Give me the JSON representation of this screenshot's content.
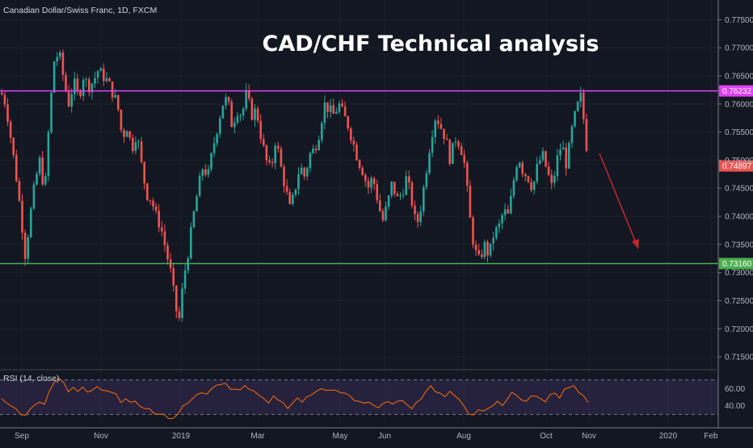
{
  "chart_data": {
    "type": "candlestick",
    "symbol_legend": "Canadian Dollar/Swiss Franc, 1D, FXCM",
    "title": "CAD/CHF Technical analysis",
    "price_axis": {
      "range": [
        0.713,
        0.7785
      ],
      "ticks": [
        "0.77500",
        "0.77000",
        "0.76500",
        "0.76000",
        "0.75500",
        "0.75000",
        "0.74500",
        "0.74000",
        "0.73500",
        "0.73000",
        "0.72500",
        "0.72000",
        "0.71500"
      ]
    },
    "time_axis": {
      "ticks": [
        "Sep",
        "Nov",
        "2019",
        "Mar",
        "May",
        "Jun",
        "Aug",
        "Oct",
        "Nov",
        "2020",
        "Feb"
      ]
    },
    "resistance": {
      "price": 0.76232,
      "label": "0.76232",
      "color": "#e040fb"
    },
    "support": {
      "price": 0.7316,
      "label": "0.73160",
      "color": "#4caf50"
    },
    "last_price": {
      "price": 0.74897,
      "label": "0.74897",
      "color": "#ef5350"
    },
    "bullish_color": "#26a69a",
    "bearish_color": "#ef5350",
    "close_path": [
      [
        0.762,
        0
      ],
      [
        0.76,
        6
      ],
      [
        0.754,
        12
      ],
      [
        0.748,
        18
      ],
      [
        0.741,
        24
      ],
      [
        0.733,
        30
      ],
      [
        0.74,
        36
      ],
      [
        0.746,
        42
      ],
      [
        0.75,
        48
      ],
      [
        0.744,
        54
      ],
      [
        0.758,
        60
      ],
      [
        0.768,
        66
      ],
      [
        0.769,
        72
      ],
      [
        0.764,
        78
      ],
      [
        0.76,
        84
      ],
      [
        0.764,
        90
      ],
      [
        0.761,
        96
      ],
      [
        0.765,
        102
      ],
      [
        0.763,
        108
      ],
      [
        0.764,
        114
      ],
      [
        0.766,
        120
      ],
      [
        0.765,
        126
      ],
      [
        0.764,
        132
      ],
      [
        0.762,
        138
      ],
      [
        0.76,
        144
      ],
      [
        0.754,
        150
      ],
      [
        0.756,
        156
      ],
      [
        0.752,
        162
      ],
      [
        0.755,
        168
      ],
      [
        0.749,
        174
      ],
      [
        0.744,
        180
      ],
      [
        0.743,
        186
      ],
      [
        0.74,
        192
      ],
      [
        0.738,
        198
      ],
      [
        0.734,
        204
      ],
      [
        0.73,
        210
      ],
      [
        0.724,
        216
      ],
      [
        0.721,
        220
      ],
      [
        0.729,
        226
      ],
      [
        0.734,
        232
      ],
      [
        0.74,
        238
      ],
      [
        0.745,
        244
      ],
      [
        0.749,
        250
      ],
      [
        0.747,
        256
      ],
      [
        0.752,
        262
      ],
      [
        0.756,
        268
      ],
      [
        0.76,
        274
      ],
      [
        0.761,
        280
      ],
      [
        0.756,
        286
      ],
      [
        0.759,
        292
      ],
      [
        0.758,
        298
      ],
      [
        0.762,
        304
      ],
      [
        0.758,
        310
      ],
      [
        0.759,
        316
      ],
      [
        0.754,
        322
      ],
      [
        0.75,
        328
      ],
      [
        0.748,
        334
      ],
      [
        0.754,
        340
      ],
      [
        0.749,
        346
      ],
      [
        0.745,
        352
      ],
      [
        0.741,
        358
      ],
      [
        0.745,
        364
      ],
      [
        0.749,
        370
      ],
      [
        0.747,
        376
      ],
      [
        0.751,
        382
      ],
      [
        0.752,
        388
      ],
      [
        0.755,
        394
      ],
      [
        0.76,
        400
      ],
      [
        0.759,
        406
      ],
      [
        0.758,
        412
      ],
      [
        0.76,
        418
      ],
      [
        0.758,
        424
      ],
      [
        0.756,
        430
      ],
      [
        0.753,
        436
      ],
      [
        0.75,
        442
      ],
      [
        0.748,
        448
      ],
      [
        0.745,
        454
      ],
      [
        0.747,
        460
      ],
      [
        0.743,
        466
      ],
      [
        0.739,
        472
      ],
      [
        0.742,
        478
      ],
      [
        0.746,
        484
      ],
      [
        0.743,
        490
      ],
      [
        0.744,
        496
      ],
      [
        0.747,
        502
      ],
      [
        0.743,
        508
      ],
      [
        0.738,
        514
      ],
      [
        0.742,
        520
      ],
      [
        0.748,
        526
      ],
      [
        0.754,
        532
      ],
      [
        0.758,
        538
      ],
      [
        0.756,
        544
      ],
      [
        0.754,
        550
      ],
      [
        0.75,
        556
      ],
      [
        0.754,
        562
      ],
      [
        0.753,
        568
      ],
      [
        0.749,
        574
      ],
      [
        0.74,
        580
      ],
      [
        0.734,
        586
      ],
      [
        0.732,
        592
      ],
      [
        0.735,
        598
      ],
      [
        0.733,
        604
      ],
      [
        0.737,
        610
      ],
      [
        0.738,
        616
      ],
      [
        0.741,
        622
      ],
      [
        0.74,
        628
      ],
      [
        0.746,
        634
      ],
      [
        0.751,
        640
      ],
      [
        0.748,
        646
      ],
      [
        0.747,
        652
      ],
      [
        0.745,
        658
      ],
      [
        0.749,
        664
      ],
      [
        0.751,
        670
      ],
      [
        0.748,
        676
      ],
      [
        0.745,
        682
      ],
      [
        0.75,
        688
      ],
      [
        0.753,
        694
      ],
      [
        0.749,
        700
      ],
      [
        0.755,
        706
      ],
      [
        0.759,
        712
      ],
      [
        0.7615,
        718
      ],
      [
        0.756,
        722
      ],
      [
        0.752,
        725
      ],
      [
        0.749,
        728
      ]
    ],
    "rsi": {
      "label": "RSI (14, close)",
      "range": [
        20,
        80
      ],
      "ticks": [
        "60.00",
        "40.00"
      ],
      "upper_band": 70,
      "lower_band": 30,
      "line_color": "#ff6d00",
      "values": [
        50,
        44,
        39,
        35,
        31,
        29,
        35,
        43,
        45,
        41,
        55,
        68,
        72,
        66,
        58,
        62,
        56,
        60,
        57,
        58,
        61,
        60,
        58,
        55,
        52,
        45,
        48,
        43,
        47,
        40,
        36,
        35,
        32,
        30,
        29,
        27,
        26,
        30,
        38,
        44,
        48,
        52,
        57,
        54,
        59,
        62,
        66,
        66,
        58,
        61,
        59,
        63,
        57,
        58,
        52,
        47,
        45,
        52,
        46,
        42,
        38,
        43,
        48,
        46,
        51,
        52,
        55,
        61,
        58,
        57,
        60,
        56,
        54,
        50,
        47,
        45,
        42,
        46,
        41,
        37,
        41,
        46,
        42,
        44,
        48,
        42,
        36,
        42,
        49,
        57,
        62,
        58,
        55,
        50,
        55,
        53,
        47,
        38,
        32,
        30,
        35,
        32,
        38,
        40,
        44,
        42,
        48,
        55,
        50,
        48,
        45,
        50,
        53,
        49,
        44,
        51,
        56,
        49,
        58,
        63,
        64,
        55,
        50,
        45
      ]
    },
    "annotation": {
      "type": "arrow",
      "direction": "down",
      "color": "#c62828"
    }
  }
}
